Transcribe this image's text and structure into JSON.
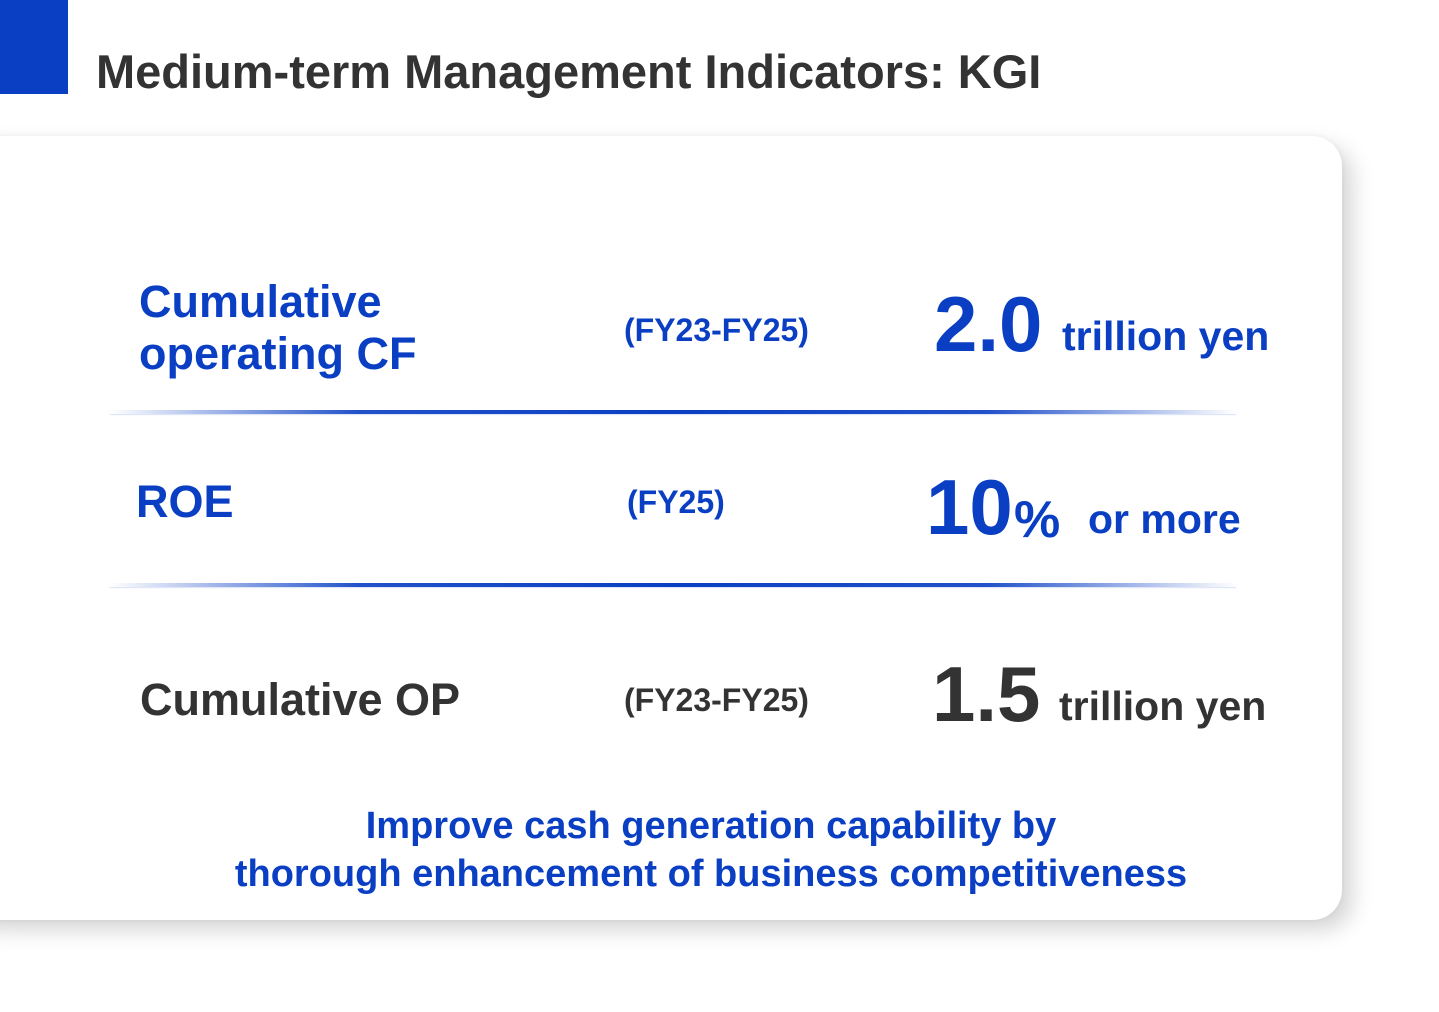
{
  "page": {
    "title": "Medium-term Management Indicators: KGI"
  },
  "colors": {
    "accent": "#0a3fc4",
    "text_dark": "#333333",
    "card_background": "#ffffff"
  },
  "indicators": [
    {
      "label_line1": "Cumulative",
      "label_line2": "operating CF",
      "period": "(FY23-FY25)",
      "value": "2.0",
      "unit": "trillion yen",
      "color": "blue"
    },
    {
      "label_line1": "ROE",
      "period": "(FY25)",
      "value": "10",
      "value_suffix": "%",
      "unit": "or more",
      "color": "blue"
    },
    {
      "label_line1": "Cumulative OP",
      "period": "(FY23-FY25)",
      "value": "1.5",
      "unit": "trillion yen",
      "color": "dark"
    }
  ],
  "message": {
    "line1": "Improve cash generation capability by",
    "line2": "thorough enhancement of business competitiveness"
  }
}
